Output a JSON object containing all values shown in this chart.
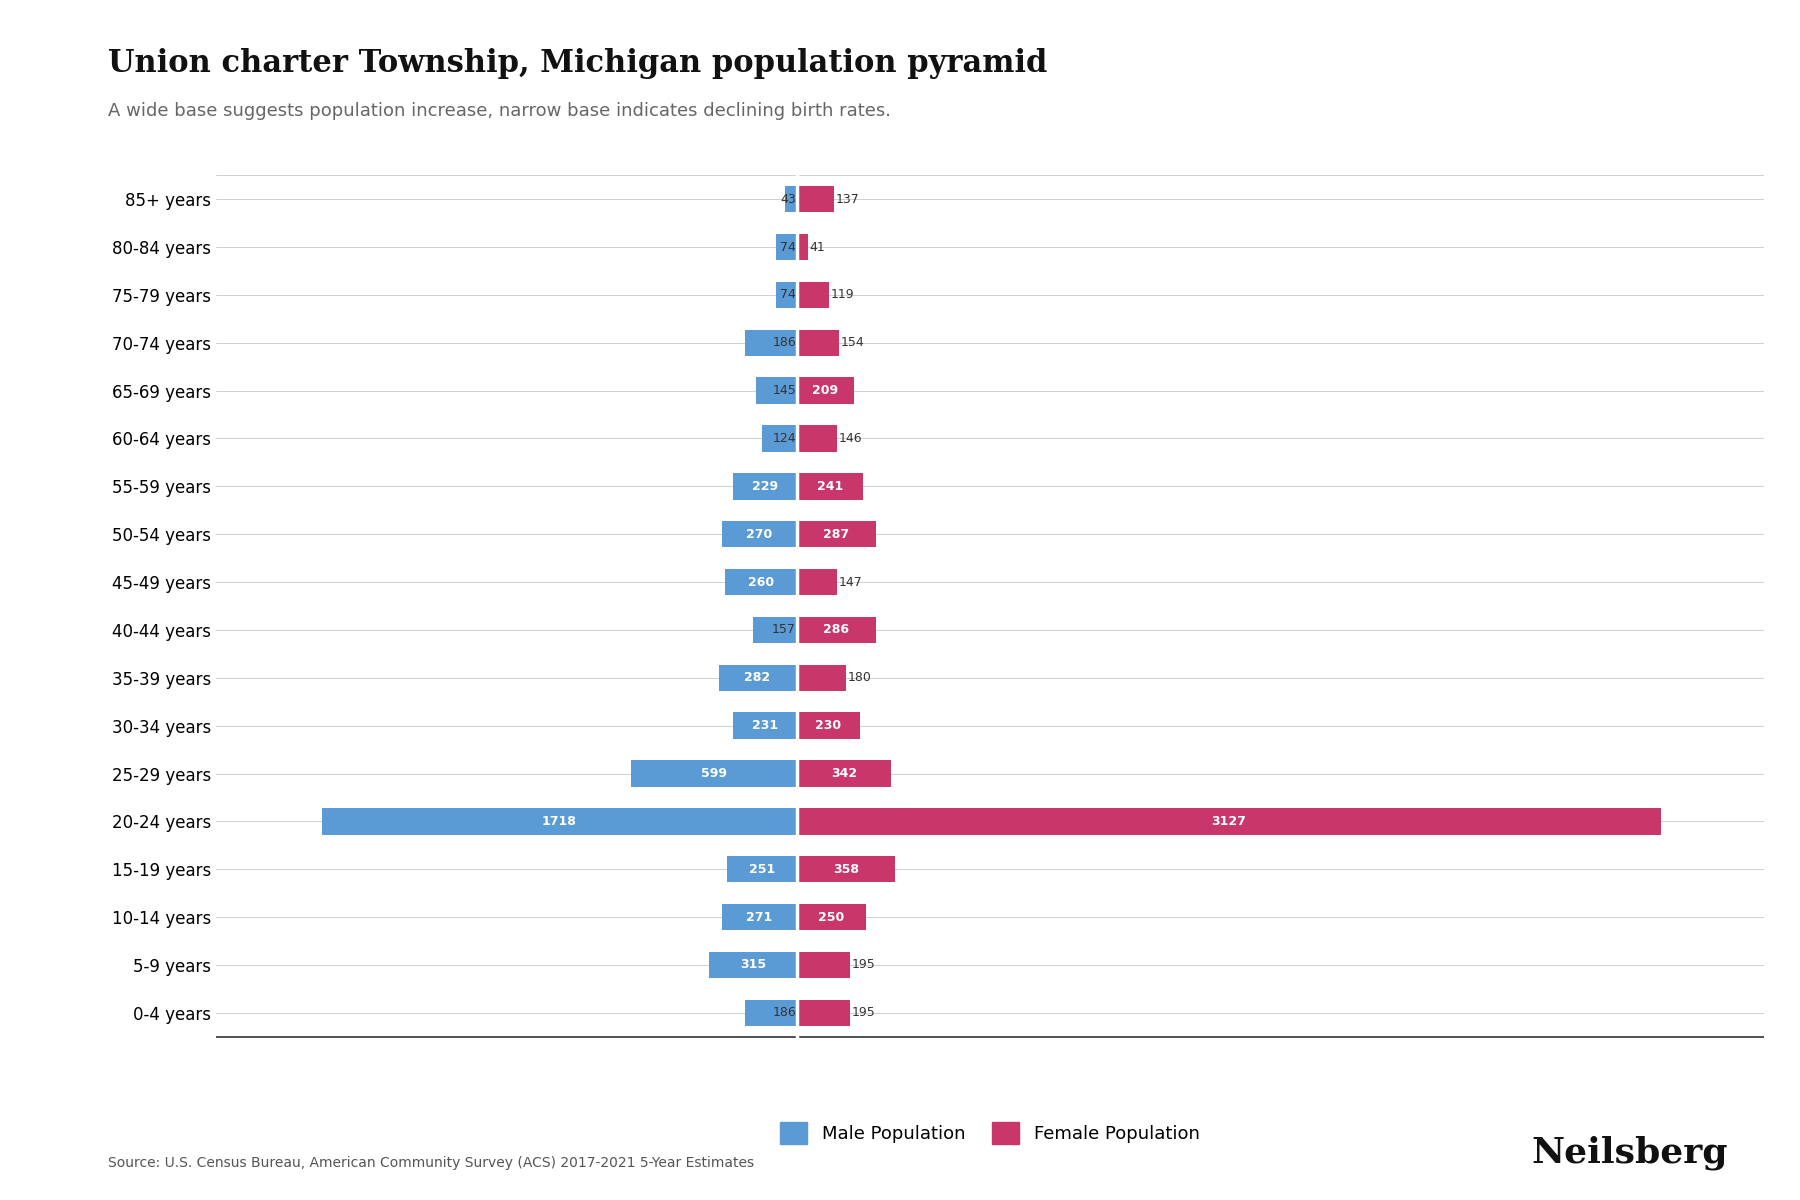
{
  "title": "Union charter Township, Michigan population pyramid",
  "subtitle": "A wide base suggests population increase, narrow base indicates declining birth rates.",
  "source": "Source: U.S. Census Bureau, American Community Survey (ACS) 2017-2021 5-Year Estimates",
  "branding": "Neilsberg",
  "age_groups": [
    "0-4 years",
    "5-9 years",
    "10-14 years",
    "15-19 years",
    "20-24 years",
    "25-29 years",
    "30-34 years",
    "35-39 years",
    "40-44 years",
    "45-49 years",
    "50-54 years",
    "55-59 years",
    "60-64 years",
    "65-69 years",
    "70-74 years",
    "75-79 years",
    "80-84 years",
    "85+ years"
  ],
  "male": [
    186,
    315,
    271,
    251,
    1718,
    599,
    231,
    282,
    157,
    260,
    270,
    229,
    124,
    145,
    186,
    74,
    74,
    43
  ],
  "female": [
    195,
    195,
    250,
    358,
    3127,
    342,
    230,
    180,
    286,
    147,
    287,
    241,
    146,
    209,
    154,
    119,
    41,
    137
  ],
  "male_color": "#5B9BD5",
  "female_color": "#C9366A",
  "background_color": "#ffffff",
  "grid_color": "#d0d0d0",
  "title_fontsize": 22,
  "subtitle_fontsize": 13,
  "label_fontsize": 12,
  "bar_label_fontsize": 9,
  "xlim": [
    -2100,
    3500
  ]
}
